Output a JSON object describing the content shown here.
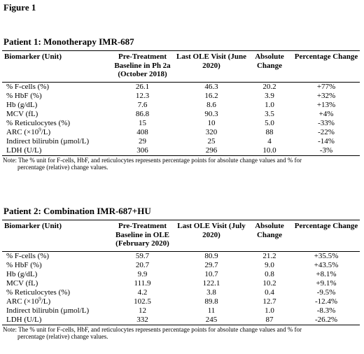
{
  "figure_title": "Figure 1",
  "patient1": {
    "title": "Patient 1: Monotherapy IMR-687",
    "headers": [
      "Biomarker (Unit)",
      "Pre-Treatment Baseline in Ph 2a (October 2018)",
      "Last OLE Visit (June 2020)",
      "Absolute Change",
      "Percentage Change"
    ],
    "rows": [
      {
        "name": "% F-cells (%)",
        "baseline": "26.1",
        "last": "46.3",
        "abs": "20.2",
        "pct": "+77%"
      },
      {
        "name": "% HbF (%)",
        "baseline": "12.3",
        "last": "16.2",
        "abs": "3.9",
        "pct": "+32%"
      },
      {
        "name": "Hb (g/dL)",
        "baseline": "7.6",
        "last": "8.6",
        "abs": "1.0",
        "pct": "+13%"
      },
      {
        "name": "MCV (fL)",
        "baseline": "86.8",
        "last": "90.3",
        "abs": "3.5",
        "pct": "+4%"
      },
      {
        "name": "% Reticulocytes (%)",
        "baseline": "15",
        "last": "10",
        "abs": "5.0",
        "pct": "-33%"
      },
      {
        "name_pre": "ARC (×10",
        "name_sup": "9",
        "name_post": "/L)",
        "baseline": "408",
        "last": "320",
        "abs": "88",
        "pct": "-22%"
      },
      {
        "name": "Indirect bilirubin (µmol/L)",
        "baseline": "29",
        "last": "25",
        "abs": "4",
        "pct": "-14%"
      },
      {
        "name": "LDH (U/L)",
        "baseline": "306",
        "last": "296",
        "abs": "10.0",
        "pct": "-3%"
      }
    ],
    "note_line1": "Note: The % unit for F-cells, HbF, and reticulocytes represents percentage points for absolute change values and % for",
    "note_line2": "percentage (relative) change values."
  },
  "patient2": {
    "title": "Patient 2: Combination IMR-687+HU",
    "headers": [
      "Biomarker (Unit)",
      "Pre-Treatment Baseline in OLE (February 2020)",
      "Last OLE Visit (July 2020)",
      "Absolute Change",
      "Percentage Change"
    ],
    "rows": [
      {
        "name": "% F-cells (%)",
        "baseline": "59.7",
        "last": "80.9",
        "abs": "21.2",
        "pct": "+35.5%"
      },
      {
        "name": "% HbF (%)",
        "baseline": "20.7",
        "last": "29.7",
        "abs": "9.0",
        "pct": "+43.5%"
      },
      {
        "name": "Hb (g/dL)",
        "baseline": "9.9",
        "last": "10.7",
        "abs": "0.8",
        "pct": "+8.1%"
      },
      {
        "name": "MCV (fL)",
        "baseline": "111.9",
        "last": "122.1",
        "abs": "10.2",
        "pct": "+9.1%"
      },
      {
        "name": "% Reticulocytes (%)",
        "baseline": "4.2",
        "last": "3.8",
        "abs": "0.4",
        "pct": "-9.5%"
      },
      {
        "name_pre": "ARC (×10",
        "name_sup": "9",
        "name_post": "/L)",
        "baseline": "102.5",
        "last": "89.8",
        "abs": "12.7",
        "pct": "-12.4%"
      },
      {
        "name": "Indirect bilirubin (µmol/L)",
        "baseline": "12",
        "last": "11",
        "abs": "1.0",
        "pct": "-8.3%"
      },
      {
        "name": "LDH (U/L)",
        "baseline": "332",
        "last": "245",
        "abs": "87",
        "pct": "-26.2%"
      }
    ],
    "note_line1": "Note: The % unit for F-cells, HbF, and reticulocytes represents percentage points for absolute change values and % for",
    "note_line2": "percentage (relative) change values."
  }
}
